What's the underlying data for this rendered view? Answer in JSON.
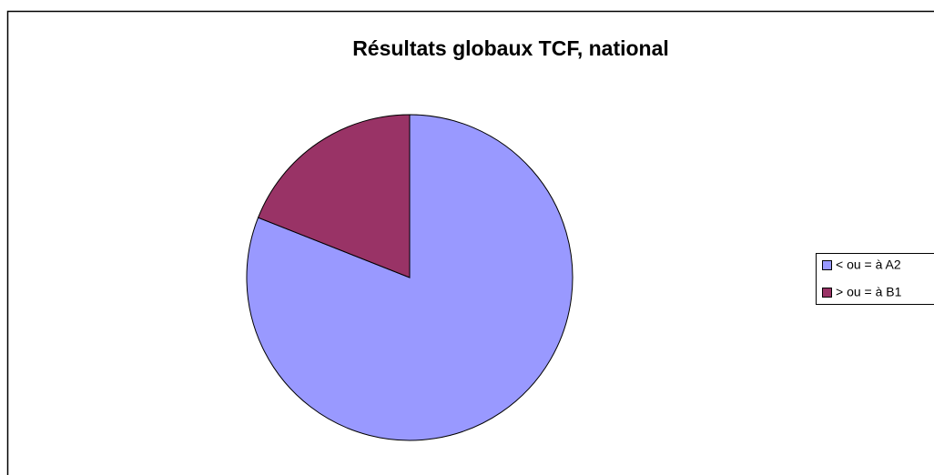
{
  "chart_data": {
    "type": "pie",
    "title": "Résultats globaux TCF, national",
    "categories": [
      "< ou = à A2",
      "> ou = à B1"
    ],
    "values": [
      81,
      19
    ],
    "colors": [
      "#9999ff",
      "#993366"
    ],
    "legend": "right"
  }
}
